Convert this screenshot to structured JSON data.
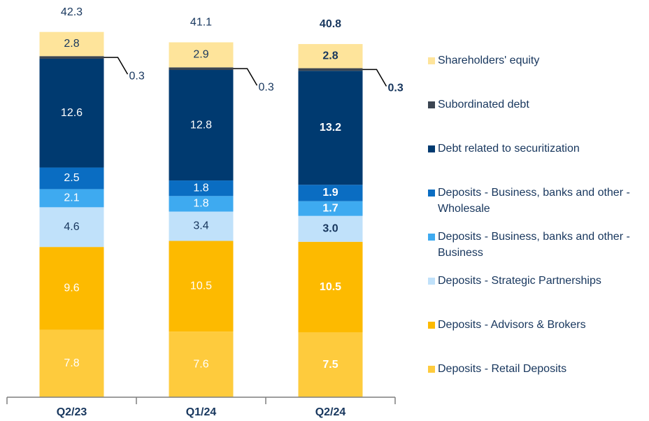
{
  "chart_data": {
    "type": "stacked_bar",
    "categories": [
      "Q2/23",
      "Q1/24",
      "Q2/24"
    ],
    "ylim": [
      0,
      46
    ],
    "totals": [
      42.3,
      41.1,
      40.8
    ],
    "series": [
      {
        "name": "Deposits - Retail Deposits",
        "color": "#fecb3d",
        "label_color": "#ffffff",
        "values": [
          7.8,
          7.6,
          7.5
        ]
      },
      {
        "name": "Deposits - Advisors & Brokers",
        "color": "#fdba00",
        "label_color": "#ffffff",
        "values": [
          9.6,
          10.5,
          10.5
        ]
      },
      {
        "name": "Deposits - Strategic Partnerships",
        "color": "#c0e1fa",
        "label_color": "#17365d",
        "values": [
          4.6,
          3.4,
          3
        ],
        "value_labels": [
          "4.6",
          "3.4",
          "3.0"
        ]
      },
      {
        "name": "Deposits - Business, banks and other - Business",
        "color": "#3eaaf0",
        "label_color": "#ffffff",
        "values": [
          2.1,
          1.8,
          1.7
        ]
      },
      {
        "name": "Deposits - Business, banks and other - Wholesale",
        "color": "#0a6dc2",
        "label_color": "#ffffff",
        "values": [
          2.5,
          1.8,
          1.9
        ]
      },
      {
        "name": "Debt related to securitization",
        "color": "#003a70",
        "label_color": "#ffffff",
        "values": [
          12.6,
          12.8,
          13.2
        ]
      },
      {
        "name": "Subordinated debt",
        "color": "#3b4552",
        "label_color": "#17365d",
        "callout": true,
        "values": [
          0.3,
          0.3,
          0.3
        ]
      },
      {
        "name": "Shareholders' equity",
        "color": "#fee49b",
        "label_color": "#17365d",
        "values": [
          2.8,
          2.9,
          2.8
        ]
      }
    ]
  }
}
